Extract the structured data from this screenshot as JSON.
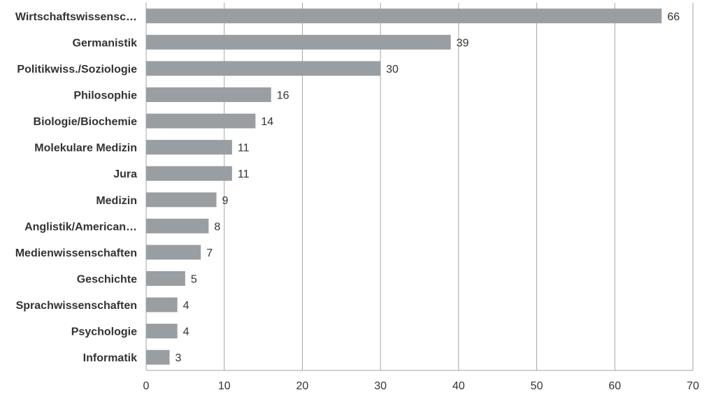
{
  "chart_data": {
    "type": "bar",
    "orientation": "horizontal",
    "categories": [
      "Wirtschaftswissensc…",
      "Germanistik",
      "Politikwiss./Soziologie",
      "Philosophie",
      "Biologie/Biochemie",
      "Molekulare Medizin",
      "Jura",
      "Medizin",
      "Anglistik/American…",
      "Medienwissenschaften",
      "Geschichte",
      "Sprachwissenschaften",
      "Psychologie",
      "Informatik"
    ],
    "values": [
      66,
      39,
      30,
      16,
      14,
      11,
      11,
      9,
      8,
      7,
      5,
      4,
      4,
      3
    ],
    "xlim": [
      0,
      70
    ],
    "xticks": [
      0,
      10,
      20,
      30,
      40,
      50,
      60,
      70
    ],
    "grid": true,
    "data_labels": true,
    "bar_color": "#999ea3",
    "grid_color": "#a6a6a6"
  }
}
